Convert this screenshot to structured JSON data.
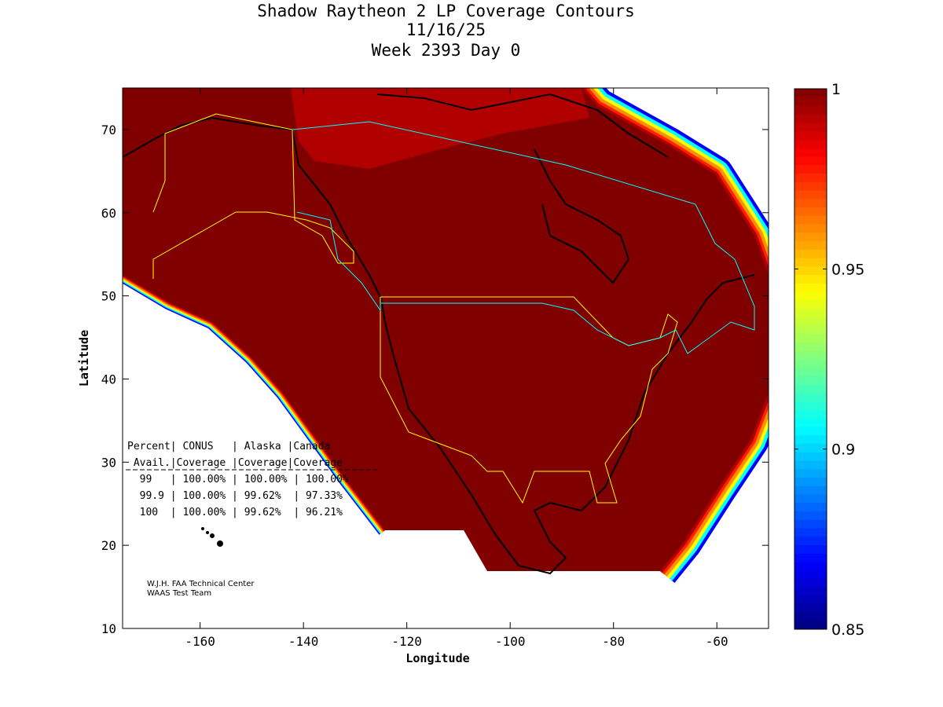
{
  "chart_data": {
    "type": "heatmap",
    "title_lines": [
      "Shadow Raytheon 2 LP Coverage Contours",
      "11/16/25",
      "Week 2393 Day 0"
    ],
    "xlabel": "Longitude",
    "ylabel": "Latitude",
    "xlim": [
      -175,
      -50
    ],
    "ylim": [
      10,
      75
    ],
    "xticks": [
      -160,
      -140,
      -120,
      -100,
      -80,
      -60
    ],
    "yticks": [
      10,
      20,
      30,
      40,
      50,
      60,
      70
    ],
    "colorbar": {
      "range": [
        0.85,
        1
      ],
      "ticks": [
        "1",
        "0.95",
        "0.9",
        "0.85"
      ],
      "tick_values": [
        1,
        0.95,
        0.9,
        0.85
      ],
      "colormap": "jet"
    },
    "coverage_table": {
      "header1": "Percent| CONUS   | Alaska |Canada",
      "header2": " Avail.|Coverage |Coverage|Coverage",
      "rows": [
        {
          "avail": "99",
          "conus": "100.00%",
          "alaska": "100.00%",
          "canada": "100.00%"
        },
        {
          "avail": "99.9",
          "conus": "100.00%",
          "alaska": "99.62%",
          "canada": "97.33%"
        },
        {
          "avail": "100",
          "conus": "100.00%",
          "alaska": "99.62%",
          "canada": "96.21%"
        }
      ]
    },
    "credit_lines": [
      "W.J.H. FAA Technical Center",
      "WAAS Test Team"
    ]
  },
  "colors": {
    "full": "#800000",
    "band1": "#b00000",
    "band2": "#ff2000",
    "band3": "#ff9000",
    "band4": "#ffff00",
    "band5": "#00ffff",
    "band6": "#0000ff",
    "conus_outline": "#ffff00",
    "border": "#00ffff"
  }
}
